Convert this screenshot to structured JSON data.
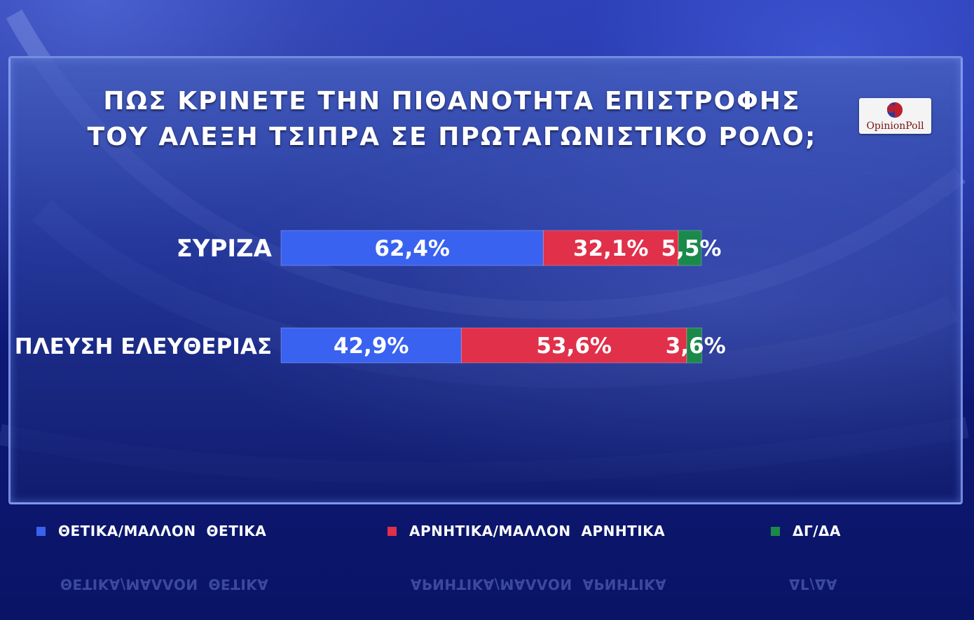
{
  "chart_data": {
    "type": "bar",
    "stacked": true,
    "orientation": "horizontal",
    "title": [
      "ΠΩΣ ΚΡΙΝΕΤΕ ΤΗΝ ΠΙΘΑΝΟΤΗΤΑ ΕΠΙΣΤΡΟΦΗΣ",
      "ΤΟΥ ΑΛΕΞΗ ΤΣΙΠΡΑ ΣΕ ΠΡΩΤΑΓΩΝΙΣΤΙΚΟ ΡΟΛΟ;"
    ],
    "categories": [
      "ΣΥΡΙΖΑ",
      "ΠΛΕΥΣΗ ΕΛΕΥΘΕΡΙΑΣ"
    ],
    "series": [
      {
        "name": "ΘΕΤΙΚΑ/ΜΑΛΛΟΝ ΘΕΤΙΚΑ",
        "values": [
          62.4,
          42.9
        ],
        "labels": [
          "62,4%",
          "42,9%"
        ],
        "color": "#3a62f0"
      },
      {
        "name": "ΑΡΝΗΤΙΚΑ/ΜΑΛΛΟΝ ΑΡΝΗΤΙΚΑ",
        "values": [
          32.1,
          53.6
        ],
        "labels": [
          "32,1%",
          "53,6%"
        ],
        "color": "#e0304a"
      },
      {
        "name": "ΔΓ/ΔΑ",
        "values": [
          5.5,
          3.6
        ],
        "labels": [
          "5,5%",
          "3,6%"
        ],
        "color": "#1a8a4a"
      }
    ],
    "xlim": [
      0,
      100
    ],
    "legend_position": "bottom",
    "grid": false
  },
  "logo": {
    "text": "OpinionPoll"
  },
  "legend": {
    "items": [
      {
        "label": "ΘΕΤΙΚΑ/ΜΑΛΛΟΝ  ΘΕΤΙΚΑ",
        "color": "#3a62f0"
      },
      {
        "label": "ΑΡΝΗΤΙΚΑ/ΜΑΛΛΟΝ  ΑΡΝΗΤΙΚΑ",
        "color": "#e0304a"
      },
      {
        "label": "ΔΓ/ΔΑ",
        "color": "#1a8a4a"
      }
    ]
  }
}
